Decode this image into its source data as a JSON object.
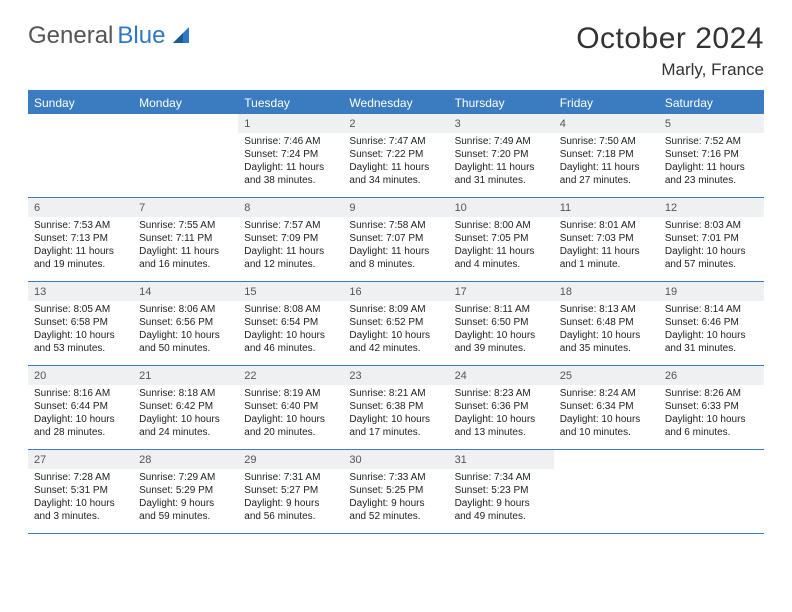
{
  "brand": {
    "part1": "General",
    "part2": "Blue"
  },
  "title": "October 2024",
  "location": "Marly, France",
  "colors": {
    "accent": "#3a7cbf",
    "daybg": "#eef0f2"
  },
  "weekdays": [
    "Sunday",
    "Monday",
    "Tuesday",
    "Wednesday",
    "Thursday",
    "Friday",
    "Saturday"
  ],
  "weeks": [
    [
      null,
      null,
      {
        "n": "1",
        "sr": "7:46 AM",
        "ss": "7:24 PM",
        "dl": "11 hours and 38 minutes."
      },
      {
        "n": "2",
        "sr": "7:47 AM",
        "ss": "7:22 PM",
        "dl": "11 hours and 34 minutes."
      },
      {
        "n": "3",
        "sr": "7:49 AM",
        "ss": "7:20 PM",
        "dl": "11 hours and 31 minutes."
      },
      {
        "n": "4",
        "sr": "7:50 AM",
        "ss": "7:18 PM",
        "dl": "11 hours and 27 minutes."
      },
      {
        "n": "5",
        "sr": "7:52 AM",
        "ss": "7:16 PM",
        "dl": "11 hours and 23 minutes."
      }
    ],
    [
      {
        "n": "6",
        "sr": "7:53 AM",
        "ss": "7:13 PM",
        "dl": "11 hours and 19 minutes."
      },
      {
        "n": "7",
        "sr": "7:55 AM",
        "ss": "7:11 PM",
        "dl": "11 hours and 16 minutes."
      },
      {
        "n": "8",
        "sr": "7:57 AM",
        "ss": "7:09 PM",
        "dl": "11 hours and 12 minutes."
      },
      {
        "n": "9",
        "sr": "7:58 AM",
        "ss": "7:07 PM",
        "dl": "11 hours and 8 minutes."
      },
      {
        "n": "10",
        "sr": "8:00 AM",
        "ss": "7:05 PM",
        "dl": "11 hours and 4 minutes."
      },
      {
        "n": "11",
        "sr": "8:01 AM",
        "ss": "7:03 PM",
        "dl": "11 hours and 1 minute."
      },
      {
        "n": "12",
        "sr": "8:03 AM",
        "ss": "7:01 PM",
        "dl": "10 hours and 57 minutes."
      }
    ],
    [
      {
        "n": "13",
        "sr": "8:05 AM",
        "ss": "6:58 PM",
        "dl": "10 hours and 53 minutes."
      },
      {
        "n": "14",
        "sr": "8:06 AM",
        "ss": "6:56 PM",
        "dl": "10 hours and 50 minutes."
      },
      {
        "n": "15",
        "sr": "8:08 AM",
        "ss": "6:54 PM",
        "dl": "10 hours and 46 minutes."
      },
      {
        "n": "16",
        "sr": "8:09 AM",
        "ss": "6:52 PM",
        "dl": "10 hours and 42 minutes."
      },
      {
        "n": "17",
        "sr": "8:11 AM",
        "ss": "6:50 PM",
        "dl": "10 hours and 39 minutes."
      },
      {
        "n": "18",
        "sr": "8:13 AM",
        "ss": "6:48 PM",
        "dl": "10 hours and 35 minutes."
      },
      {
        "n": "19",
        "sr": "8:14 AM",
        "ss": "6:46 PM",
        "dl": "10 hours and 31 minutes."
      }
    ],
    [
      {
        "n": "20",
        "sr": "8:16 AM",
        "ss": "6:44 PM",
        "dl": "10 hours and 28 minutes."
      },
      {
        "n": "21",
        "sr": "8:18 AM",
        "ss": "6:42 PM",
        "dl": "10 hours and 24 minutes."
      },
      {
        "n": "22",
        "sr": "8:19 AM",
        "ss": "6:40 PM",
        "dl": "10 hours and 20 minutes."
      },
      {
        "n": "23",
        "sr": "8:21 AM",
        "ss": "6:38 PM",
        "dl": "10 hours and 17 minutes."
      },
      {
        "n": "24",
        "sr": "8:23 AM",
        "ss": "6:36 PM",
        "dl": "10 hours and 13 minutes."
      },
      {
        "n": "25",
        "sr": "8:24 AM",
        "ss": "6:34 PM",
        "dl": "10 hours and 10 minutes."
      },
      {
        "n": "26",
        "sr": "8:26 AM",
        "ss": "6:33 PM",
        "dl": "10 hours and 6 minutes."
      }
    ],
    [
      {
        "n": "27",
        "sr": "7:28 AM",
        "ss": "5:31 PM",
        "dl": "10 hours and 3 minutes."
      },
      {
        "n": "28",
        "sr": "7:29 AM",
        "ss": "5:29 PM",
        "dl": "9 hours and 59 minutes."
      },
      {
        "n": "29",
        "sr": "7:31 AM",
        "ss": "5:27 PM",
        "dl": "9 hours and 56 minutes."
      },
      {
        "n": "30",
        "sr": "7:33 AM",
        "ss": "5:25 PM",
        "dl": "9 hours and 52 minutes."
      },
      {
        "n": "31",
        "sr": "7:34 AM",
        "ss": "5:23 PM",
        "dl": "9 hours and 49 minutes."
      },
      null,
      null
    ]
  ]
}
